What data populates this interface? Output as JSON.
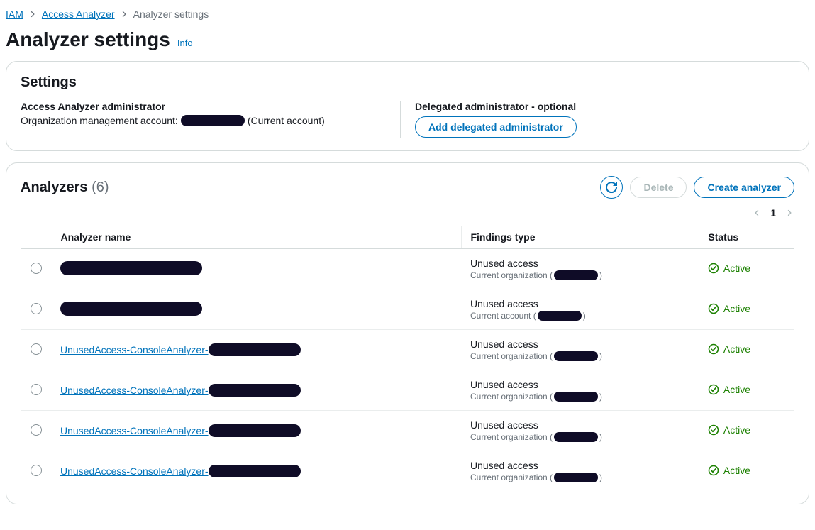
{
  "breadcrumb": {
    "iam": "IAM",
    "access_analyzer": "Access Analyzer",
    "current": "Analyzer settings"
  },
  "page": {
    "title": "Analyzer settings",
    "info": "Info"
  },
  "settings": {
    "header": "Settings",
    "admin_label": "Access Analyzer administrator",
    "admin_prefix": "Organization management account: ",
    "admin_suffix": "(Current account)",
    "delegated_label": "Delegated administrator - optional",
    "delegated_button": "Add delegated administrator"
  },
  "analyzers": {
    "title": "Analyzers",
    "count_display": "(6)",
    "delete_label": "Delete",
    "create_label": "Create analyzer",
    "page_number": "1",
    "columns": {
      "name": "Analyzer name",
      "findings": "Findings type",
      "status": "Status"
    },
    "rows": [
      {
        "name_prefix": "",
        "name_is_link": false,
        "findings_primary": "Unused access",
        "findings_scope_prefix": "Current organization (",
        "findings_scope_suffix": ")",
        "status": "Active"
      },
      {
        "name_prefix": "",
        "name_is_link": false,
        "findings_primary": "Unused access",
        "findings_scope_prefix": "Current account (",
        "findings_scope_suffix": ")",
        "status": "Active"
      },
      {
        "name_prefix": "UnusedAccess-ConsoleAnalyzer-",
        "name_is_link": true,
        "findings_primary": "Unused access",
        "findings_scope_prefix": "Current organization (",
        "findings_scope_suffix": ")",
        "status": "Active"
      },
      {
        "name_prefix": "UnusedAccess-ConsoleAnalyzer-",
        "name_is_link": true,
        "findings_primary": "Unused access",
        "findings_scope_prefix": "Current organization (",
        "findings_scope_suffix": ")",
        "status": "Active"
      },
      {
        "name_prefix": "UnusedAccess-ConsoleAnalyzer-",
        "name_is_link": true,
        "findings_primary": "Unused access",
        "findings_scope_prefix": "Current organization (",
        "findings_scope_suffix": ")",
        "status": "Active"
      },
      {
        "name_prefix": "UnusedAccess-ConsoleAnalyzer-",
        "name_is_link": true,
        "findings_primary": "Unused access",
        "findings_scope_prefix": "Current organization (",
        "findings_scope_suffix": ")",
        "status": "Active"
      }
    ]
  },
  "colors": {
    "link": "#0073bb",
    "success": "#1d8102",
    "muted": "#687078",
    "border": "#d5dbdb",
    "redact": "#0f0c27"
  }
}
